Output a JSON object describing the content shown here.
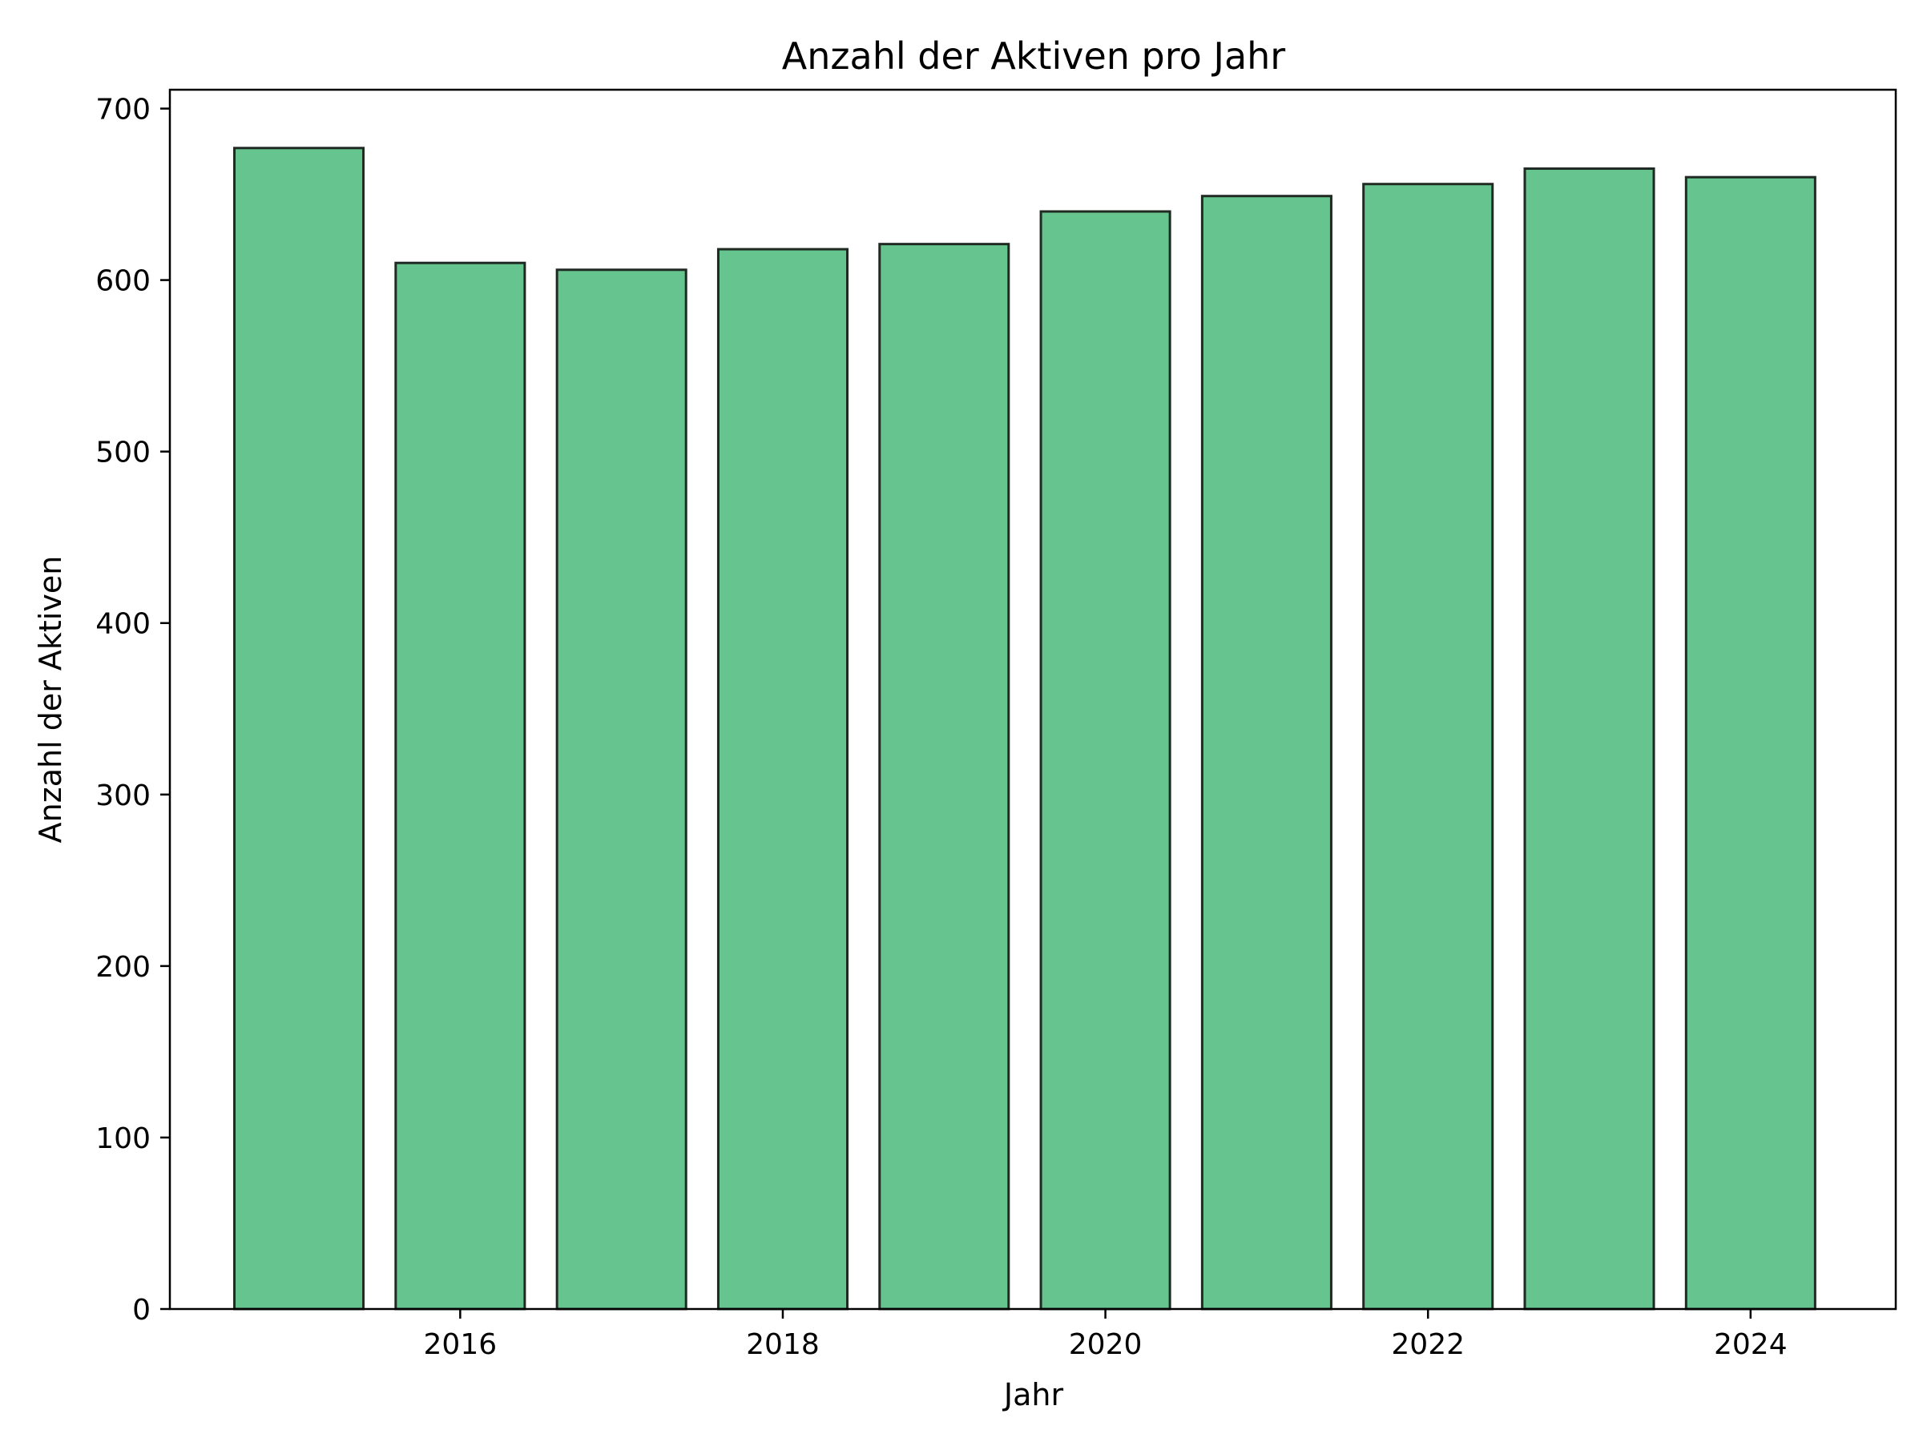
{
  "chart_data": {
    "type": "bar",
    "title": "Anzahl der Aktiven pro Jahr",
    "xlabel": "Jahr",
    "ylabel": "Anzahl der Aktiven",
    "categories": [
      2015,
      2016,
      2017,
      2018,
      2019,
      2020,
      2021,
      2022,
      2023,
      2024
    ],
    "values": [
      677,
      610,
      606,
      618,
      621,
      640,
      649,
      656,
      665,
      660
    ],
    "xlim": [
      2014.2,
      2024.9
    ],
    "ylim": [
      0,
      711
    ],
    "x_ticks": [
      2016,
      2018,
      2020,
      2022,
      2024
    ],
    "y_ticks": [
      0,
      100,
      200,
      300,
      400,
      500,
      600,
      700
    ],
    "grid": false,
    "bar_color": "#66c48e",
    "bar_edge_color": "#1f2a22"
  }
}
